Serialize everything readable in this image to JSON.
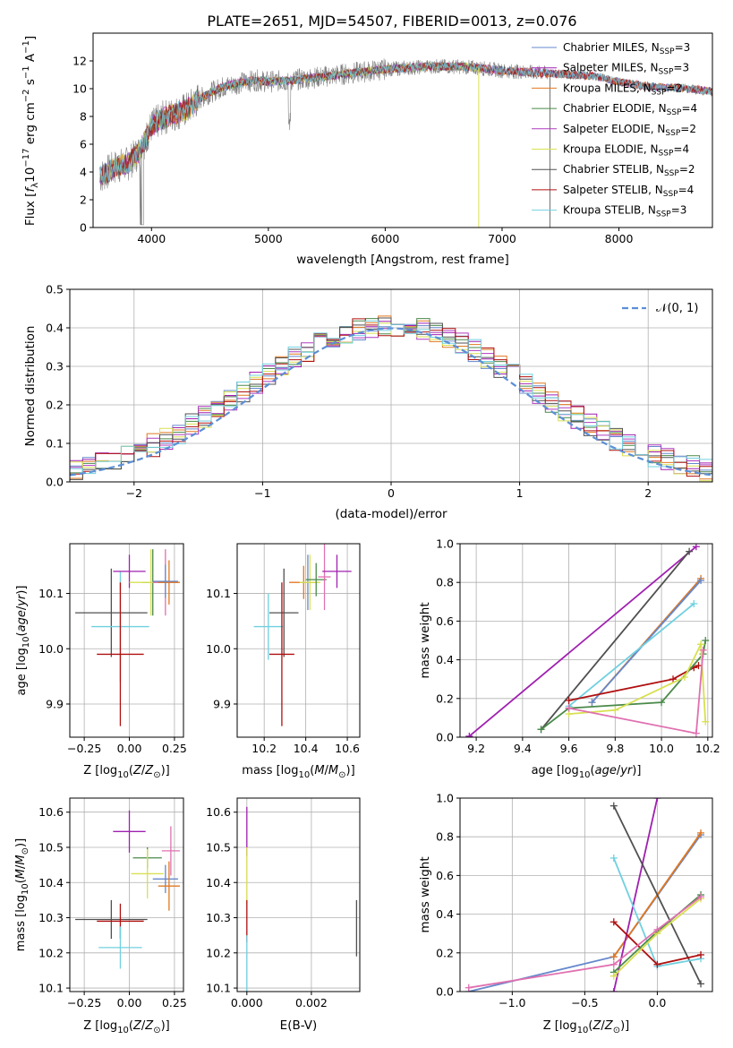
{
  "figure_title": "PLATE=2651, MJD=54507, FIBERID=0013, z=0.076",
  "colors": {
    "chabrier_miles": "#6688cc",
    "salpeter_miles": "#a020b0",
    "kroupa_miles": "#e07820",
    "chabrier_elodie": "#4a8a4a",
    "salpeter_elodie": "#b03cc0",
    "kroupa_elodie": "#d8e050",
    "chabrier_stelib": "#505050",
    "salpeter_stelib": "#b01010",
    "kroupa_stelib": "#70d0e0",
    "pink": "#e070b0",
    "normal": "#5b8fd6"
  },
  "chart_data": [
    {
      "id": "spectrum",
      "type": "line",
      "title": "PLATE=2651, MJD=54507, FIBERID=0013, z=0.076",
      "xlabel": "wavelength [Angstrom, rest frame]",
      "ylabel": "Flux [f_λ10^-17 erg cm^-2 s^-1 A^-1]",
      "ylabel_parts": {
        "a": "Flux [",
        "b": "f",
        "c": "λ",
        "d": "10",
        "e": "−17",
        "f": " erg cm",
        "g": "−2",
        "h": " s",
        "i": "−1",
        "j": " A",
        "k": "−1",
        "l": "]"
      },
      "xlim": [
        3500,
        8800
      ],
      "ylim": [
        0,
        14
      ],
      "xticks": [
        4000,
        5000,
        6000,
        7000,
        8000
      ],
      "yticks": [
        0,
        2,
        4,
        6,
        8,
        10,
        12
      ],
      "legend_position": "top-right",
      "legend": [
        {
          "name": "Chabrier MILES, N",
          "sub": "SSP",
          "n": "=3"
        },
        {
          "name": "Salpeter MILES, N",
          "sub": "SSP",
          "n": "=3"
        },
        {
          "name": "Kroupa MILES, N",
          "sub": "SSP",
          "n": "=2"
        },
        {
          "name": "Chabrier ELODIE, N",
          "sub": "SSP",
          "n": "=4"
        },
        {
          "name": "Salpeter ELODIE, N",
          "sub": "SSP",
          "n": "=2"
        },
        {
          "name": "Kroupa ELODIE, N",
          "sub": "SSP",
          "n": "=4"
        },
        {
          "name": "Chabrier STELIB, N",
          "sub": "SSP",
          "n": "=2"
        },
        {
          "name": "Salpeter STELIB, N",
          "sub": "SSP",
          "n": "=4"
        },
        {
          "name": "Kroupa STELIB, N",
          "sub": "SSP",
          "n": "=3"
        }
      ],
      "continuum": {
        "x": [
          3550,
          3700,
          3800,
          3900,
          4000,
          4100,
          4200,
          4300,
          4400,
          4500,
          4600,
          4700,
          4800,
          4900,
          5000,
          5200,
          5400,
          5600,
          5800,
          6000,
          6200,
          6400,
          6600,
          6800,
          7000,
          7200,
          7400,
          7600,
          7800,
          8000,
          8200,
          8400,
          8600,
          8800
        ],
        "y": [
          3.6,
          4.4,
          4.6,
          5.5,
          7.3,
          7.9,
          8.2,
          8.5,
          9.2,
          9.7,
          10.1,
          10.3,
          10.5,
          10.6,
          10.5,
          10.6,
          10.8,
          11.0,
          11.2,
          11.4,
          11.5,
          11.6,
          11.6,
          11.5,
          11.3,
          11.2,
          11.1,
          11.0,
          10.9,
          10.5,
          10.2,
          10.1,
          10.0,
          9.8
        ]
      }
    },
    {
      "id": "residuals",
      "type": "histogram",
      "xlabel": "(data-model)/error",
      "ylabel": "Normed distribution",
      "xlim": [
        -2.5,
        2.5
      ],
      "ylim": [
        0,
        0.5
      ],
      "xticks": [
        -2,
        -1,
        0,
        1,
        2
      ],
      "yticks": [
        0.0,
        0.1,
        0.2,
        0.3,
        0.4,
        0.5
      ],
      "legend_position": "top-right",
      "legend": "𝒩(0, 1)",
      "bin_width": 0.1,
      "bin_start": -2.5
    },
    {
      "id": "age-vs-Z",
      "type": "scatter",
      "xlabel": "Z [log10(Z/Z⊙)]",
      "ylabel": "age [log10(age/yr)]",
      "xlim": [
        -0.33,
        0.3
      ],
      "ylim": [
        9.84,
        10.19
      ],
      "xticks": [
        -0.25,
        0.0,
        0.25
      ],
      "yticks": [
        9.9,
        10.0,
        10.1
      ],
      "points": [
        {
          "c": "chabrier_stelib",
          "x": -0.1,
          "xerr": 0.2,
          "y": 10.065,
          "yerr": 0.08
        },
        {
          "c": "kroupa_stelib",
          "x": -0.05,
          "xerr": 0.16,
          "y": 10.04,
          "yerr": 0.1
        },
        {
          "c": "salpeter_stelib",
          "x": -0.05,
          "xerr": 0.13,
          "y": 9.99,
          "yerr": 0.13
        },
        {
          "c": "salpeter_miles",
          "x": 0.0,
          "xerr": 0.09,
          "y": 10.14,
          "yerr": 0.03
        },
        {
          "c": "chabrier_elodie",
          "x": 0.13,
          "xerr": 0.06,
          "y": 10.12,
          "yerr": 0.06
        },
        {
          "c": "kroupa_elodie",
          "x": 0.12,
          "xerr": 0.12,
          "y": 10.12,
          "yerr": 0.06
        },
        {
          "c": "pink",
          "x": 0.2,
          "xerr": 0.07,
          "y": 10.12,
          "yerr": 0.06
        },
        {
          "c": "kroupa_miles",
          "x": 0.22,
          "xerr": 0.06,
          "y": 10.12,
          "yerr": 0.04
        },
        {
          "c": "chabrier_miles",
          "x": 0.2,
          "xerr": 0.07,
          "y": 10.122,
          "yerr": 0.03
        }
      ]
    },
    {
      "id": "age-vs-mass",
      "type": "scatter",
      "xlabel": "mass [log10(M/M⊙)]",
      "ylabel": "",
      "xlim": [
        10.07,
        10.66
      ],
      "ylim": [
        9.84,
        10.19
      ],
      "xticks": [
        10.2,
        10.4,
        10.6
      ],
      "yticks": [
        9.9,
        10.0,
        10.1
      ],
      "points": [
        {
          "c": "kroupa_stelib",
          "x": 10.22,
          "xerr": 0.07,
          "y": 10.04,
          "yerr": 0.06
        },
        {
          "c": "chabrier_stelib",
          "x": 10.295,
          "xerr": 0.07,
          "y": 10.065,
          "yerr": 0.08
        },
        {
          "c": "salpeter_stelib",
          "x": 10.285,
          "xerr": 0.06,
          "y": 9.99,
          "yerr": 0.13
        },
        {
          "c": "kroupa_miles",
          "x": 10.39,
          "xerr": 0.07,
          "y": 10.12,
          "yerr": 0.03
        },
        {
          "c": "chabrier_miles",
          "x": 10.41,
          "xerr": 0.03,
          "y": 10.12,
          "yerr": 0.05
        },
        {
          "c": "kroupa_elodie",
          "x": 10.42,
          "xerr": 0.05,
          "y": 10.12,
          "yerr": 0.05
        },
        {
          "c": "chabrier_elodie",
          "x": 10.45,
          "xerr": 0.05,
          "y": 10.125,
          "yerr": 0.03
        },
        {
          "c": "pink",
          "x": 10.49,
          "xerr": 0.03,
          "y": 10.13,
          "yerr": 0.06
        },
        {
          "c": "salpeter_miles",
          "x": 10.55,
          "xerr": 0.07,
          "y": 10.14,
          "yerr": 0.03
        }
      ]
    },
    {
      "id": "mass-weight-vs-age",
      "type": "line",
      "xlabel": "age [log10(age/yr)]",
      "ylabel": "mass weight",
      "xlim": [
        9.13,
        10.22
      ],
      "ylim": [
        0,
        1
      ],
      "xticks": [
        9.2,
        9.4,
        9.6,
        9.8,
        10.0,
        10.2
      ],
      "yticks": [
        0.0,
        0.2,
        0.4,
        0.6,
        0.8,
        1.0
      ],
      "series": [
        {
          "c": "salpeter_miles",
          "x": [
            9.17,
            10.15
          ],
          "y": [
            0.005,
            0.985
          ]
        },
        {
          "c": "chabrier_stelib",
          "x": [
            9.48,
            10.12
          ],
          "y": [
            0.04,
            0.96
          ]
        },
        {
          "c": "kroupa_miles",
          "x": [
            9.7,
            10.17
          ],
          "y": [
            0.18,
            0.82
          ]
        },
        {
          "c": "chabrier_miles",
          "x": [
            9.7,
            10.17
          ],
          "y": [
            0.18,
            0.81
          ]
        },
        {
          "c": "kroupa_stelib",
          "x": [
            9.6,
            10.14
          ],
          "y": [
            0.16,
            0.69
          ]
        },
        {
          "c": "salpeter_stelib",
          "x": [
            9.6,
            10.05,
            10.14,
            10.16
          ],
          "y": [
            0.19,
            0.3,
            0.36,
            0.37
          ]
        },
        {
          "c": "chabrier_elodie",
          "x": [
            9.6,
            10.0,
            10.18,
            10.19
          ],
          "y": [
            0.15,
            0.18,
            0.43,
            0.5
          ]
        },
        {
          "c": "chabrier_elodie",
          "x": [
            9.48,
            9.6
          ],
          "y": [
            0.04,
            0.15
          ]
        },
        {
          "c": "kroupa_elodie",
          "x": [
            9.6,
            9.8,
            10.1,
            10.17
          ],
          "y": [
            0.12,
            0.14,
            0.31,
            0.48
          ]
        },
        {
          "c": "kroupa_elodie",
          "x": [
            10.17,
            10.19
          ],
          "y": [
            0.48,
            0.08
          ]
        },
        {
          "c": "pink",
          "x": [
            9.6,
            10.15,
            10.18
          ],
          "y": [
            0.15,
            0.02,
            0.45
          ]
        }
      ]
    },
    {
      "id": "mass-vs-Z",
      "type": "scatter",
      "xlabel": "Z [log10(Z/Z⊙)]",
      "ylabel": "mass [log10(M/M⊙)]",
      "xlim": [
        -0.33,
        0.3
      ],
      "ylim": [
        10.09,
        10.64
      ],
      "xticks": [
        -0.25,
        0.0,
        0.25
      ],
      "yticks": [
        10.1,
        10.2,
        10.3,
        10.4,
        10.5,
        10.6
      ],
      "points": [
        {
          "c": "chabrier_stelib",
          "x": -0.1,
          "xerr": 0.2,
          "y": 10.295,
          "yerr": 0.055
        },
        {
          "c": "salpeter_stelib",
          "x": -0.05,
          "xerr": 0.13,
          "y": 10.29,
          "yerr": 0.05
        },
        {
          "c": "kroupa_stelib",
          "x": -0.05,
          "xerr": 0.12,
          "y": 10.215,
          "yerr": 0.06
        },
        {
          "c": "salpeter_miles",
          "x": 0.0,
          "xerr": 0.09,
          "y": 10.545,
          "yerr": 0.06
        },
        {
          "c": "chabrier_elodie",
          "x": 0.1,
          "xerr": 0.08,
          "y": 10.47,
          "yerr": 0.03
        },
        {
          "c": "kroupa_elodie",
          "x": 0.1,
          "xerr": 0.09,
          "y": 10.425,
          "yerr": 0.07
        },
        {
          "c": "pink",
          "x": 0.23,
          "xerr": 0.05,
          "y": 10.49,
          "yerr": 0.07
        },
        {
          "c": "chabrier_miles",
          "x": 0.2,
          "xerr": 0.07,
          "y": 10.41,
          "yerr": 0.04
        },
        {
          "c": "kroupa_miles",
          "x": 0.22,
          "xerr": 0.06,
          "y": 10.39,
          "yerr": 0.07
        }
      ]
    },
    {
      "id": "mass-vs-EBV",
      "type": "scatter",
      "xlabel": "E(B-V)",
      "ylabel": "",
      "xlim": [
        -0.0003,
        0.0035
      ],
      "ylim": [
        10.09,
        10.64
      ],
      "xticks": [
        0.0,
        0.002
      ],
      "yticks": [
        10.1,
        10.2,
        10.3,
        10.4,
        10.5,
        10.6
      ],
      "points": [
        {
          "c": "salpeter_miles",
          "x": 0.0,
          "xerr": 0,
          "y": 10.545,
          "yerr": 0.07
        },
        {
          "c": "kroupa_elodie",
          "x": 0.0,
          "xerr": 0,
          "y": 10.42,
          "yerr": 0.08
        },
        {
          "c": "salpeter_stelib",
          "x": 0.0,
          "xerr": 0,
          "y": 10.29,
          "yerr": 0.06
        },
        {
          "c": "kroupa_stelib",
          "x": 0.0,
          "xerr": 0,
          "y": 10.17,
          "yerr": 0.08
        },
        {
          "c": "chabrier_stelib",
          "x": 0.0034,
          "xerr": 0,
          "y": 10.27,
          "yerr": 0.08
        }
      ]
    },
    {
      "id": "mass-weight-vs-Z",
      "type": "line",
      "xlabel": "Z [log10(Z/Z⊙)]",
      "ylabel": "mass weight",
      "xlim": [
        -1.36,
        0.38
      ],
      "ylim": [
        0,
        1
      ],
      "xticks": [
        -1.0,
        -0.5,
        0.0
      ],
      "yticks": [
        0.0,
        0.2,
        0.4,
        0.6,
        0.8,
        1.0
      ],
      "series": [
        {
          "c": "chabrier_miles",
          "x": [
            -1.3,
            -0.3,
            0.3
          ],
          "y": [
            0.0,
            0.18,
            0.81
          ]
        },
        {
          "c": "kroupa_miles",
          "x": [
            -0.3,
            0.3
          ],
          "y": [
            0.18,
            0.82
          ]
        },
        {
          "c": "salpeter_miles",
          "x": [
            -0.3,
            0.0
          ],
          "y": [
            0.0,
            1.0
          ]
        },
        {
          "c": "chabrier_stelib",
          "x": [
            -0.3,
            0.3
          ],
          "y": [
            0.96,
            0.04
          ]
        },
        {
          "c": "kroupa_stelib",
          "x": [
            -0.3,
            0.0,
            0.3
          ],
          "y": [
            0.69,
            0.13,
            0.17
          ]
        },
        {
          "c": "salpeter_stelib",
          "x": [
            -0.3,
            0.0,
            0.3
          ],
          "y": [
            0.36,
            0.14,
            0.19
          ]
        },
        {
          "c": "chabrier_elodie",
          "x": [
            -0.3,
            0.0,
            0.3
          ],
          "y": [
            0.1,
            0.31,
            0.5
          ]
        },
        {
          "c": "kroupa_elodie",
          "x": [
            -0.3,
            0.0,
            0.3
          ],
          "y": [
            0.08,
            0.3,
            0.48
          ]
        },
        {
          "c": "pink",
          "x": [
            -1.3,
            -0.3,
            0.0,
            0.3
          ],
          "y": [
            0.02,
            0.14,
            0.32,
            0.49
          ]
        }
      ]
    }
  ]
}
